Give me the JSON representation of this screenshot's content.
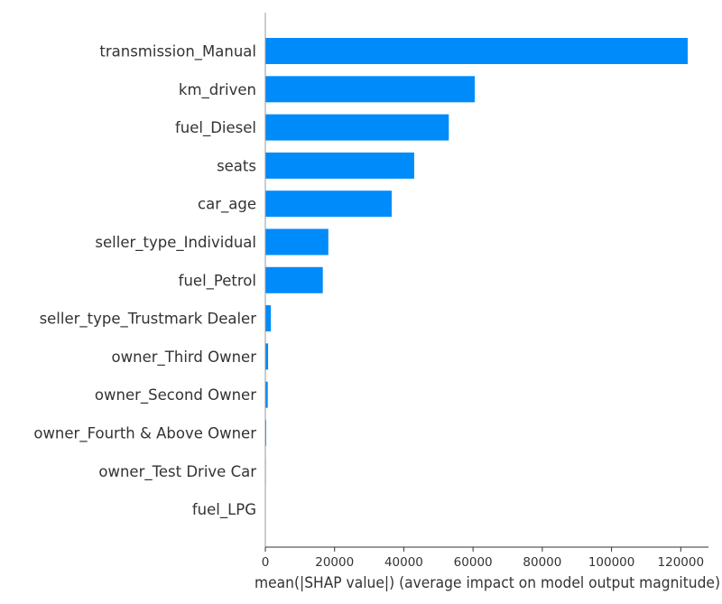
{
  "chart_data": {
    "type": "bar",
    "orientation": "horizontal",
    "categories": [
      "transmission_Manual",
      "km_driven",
      "fuel_Diesel",
      "seats",
      "car_age",
      "seller_type_Individual",
      "fuel_Petrol",
      "seller_type_Trustmark Dealer",
      "owner_Third Owner",
      "owner_Second Owner",
      "owner_Fourth & Above Owner",
      "owner_Test Drive Car",
      "fuel_LPG"
    ],
    "values": [
      122000,
      60500,
      53000,
      43000,
      36500,
      18200,
      16600,
      1600,
      800,
      700,
      250,
      150,
      0
    ],
    "title": "",
    "xlabel": "mean(|SHAP value|) (average impact on model output magnitude)",
    "ylabel": "",
    "xlim": [
      0,
      128000
    ],
    "xticks": [
      0,
      20000,
      40000,
      60000,
      80000,
      100000,
      120000
    ],
    "xtick_labels": [
      "0",
      "20000",
      "40000",
      "60000",
      "80000",
      "100000",
      "120000"
    ],
    "grid": false,
    "legend": "none",
    "bar_color": "#008bfb",
    "axis_color": "#333333"
  }
}
